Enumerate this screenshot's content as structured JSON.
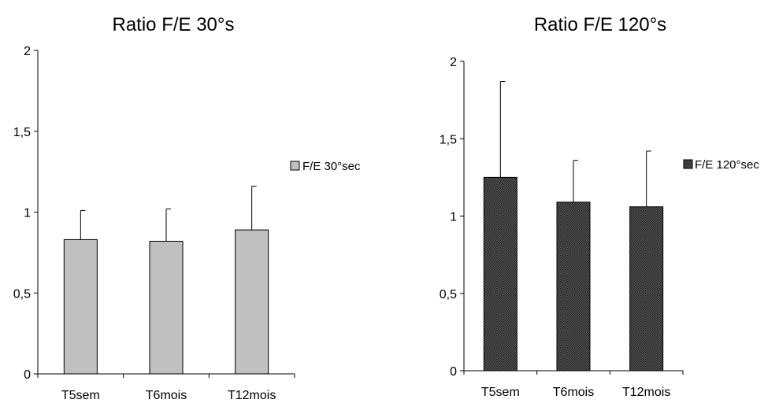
{
  "chart_data": [
    {
      "type": "bar",
      "title": "Ratio F/E 30°s",
      "categories": [
        "T5sem",
        "T6mois",
        "T12mois"
      ],
      "series": [
        {
          "name": "F/E 30°sec",
          "values": [
            0.83,
            0.82,
            0.89
          ],
          "errors": [
            0.18,
            0.2,
            0.27
          ]
        }
      ],
      "y_ticks": [
        "0",
        "0,5",
        "1",
        "1,5",
        "2"
      ],
      "ylim": [
        0,
        2
      ],
      "grid": false,
      "legend_position": "right",
      "colors": {
        "bar": "#c0c0c0"
      }
    },
    {
      "type": "bar",
      "title": "Ratio F/E 120°s",
      "categories": [
        "T5sem",
        "T6mois",
        "T12mois"
      ],
      "series": [
        {
          "name": "F/E 120°sec",
          "values": [
            1.25,
            1.09,
            1.06
          ],
          "errors": [
            0.62,
            0.27,
            0.36
          ]
        }
      ],
      "y_ticks": [
        "0",
        "0,5",
        "1",
        "1,5",
        "2"
      ],
      "ylim": [
        0,
        2
      ],
      "grid": false,
      "legend_position": "right",
      "colors": {
        "bar": "#3c3c3c"
      }
    }
  ]
}
